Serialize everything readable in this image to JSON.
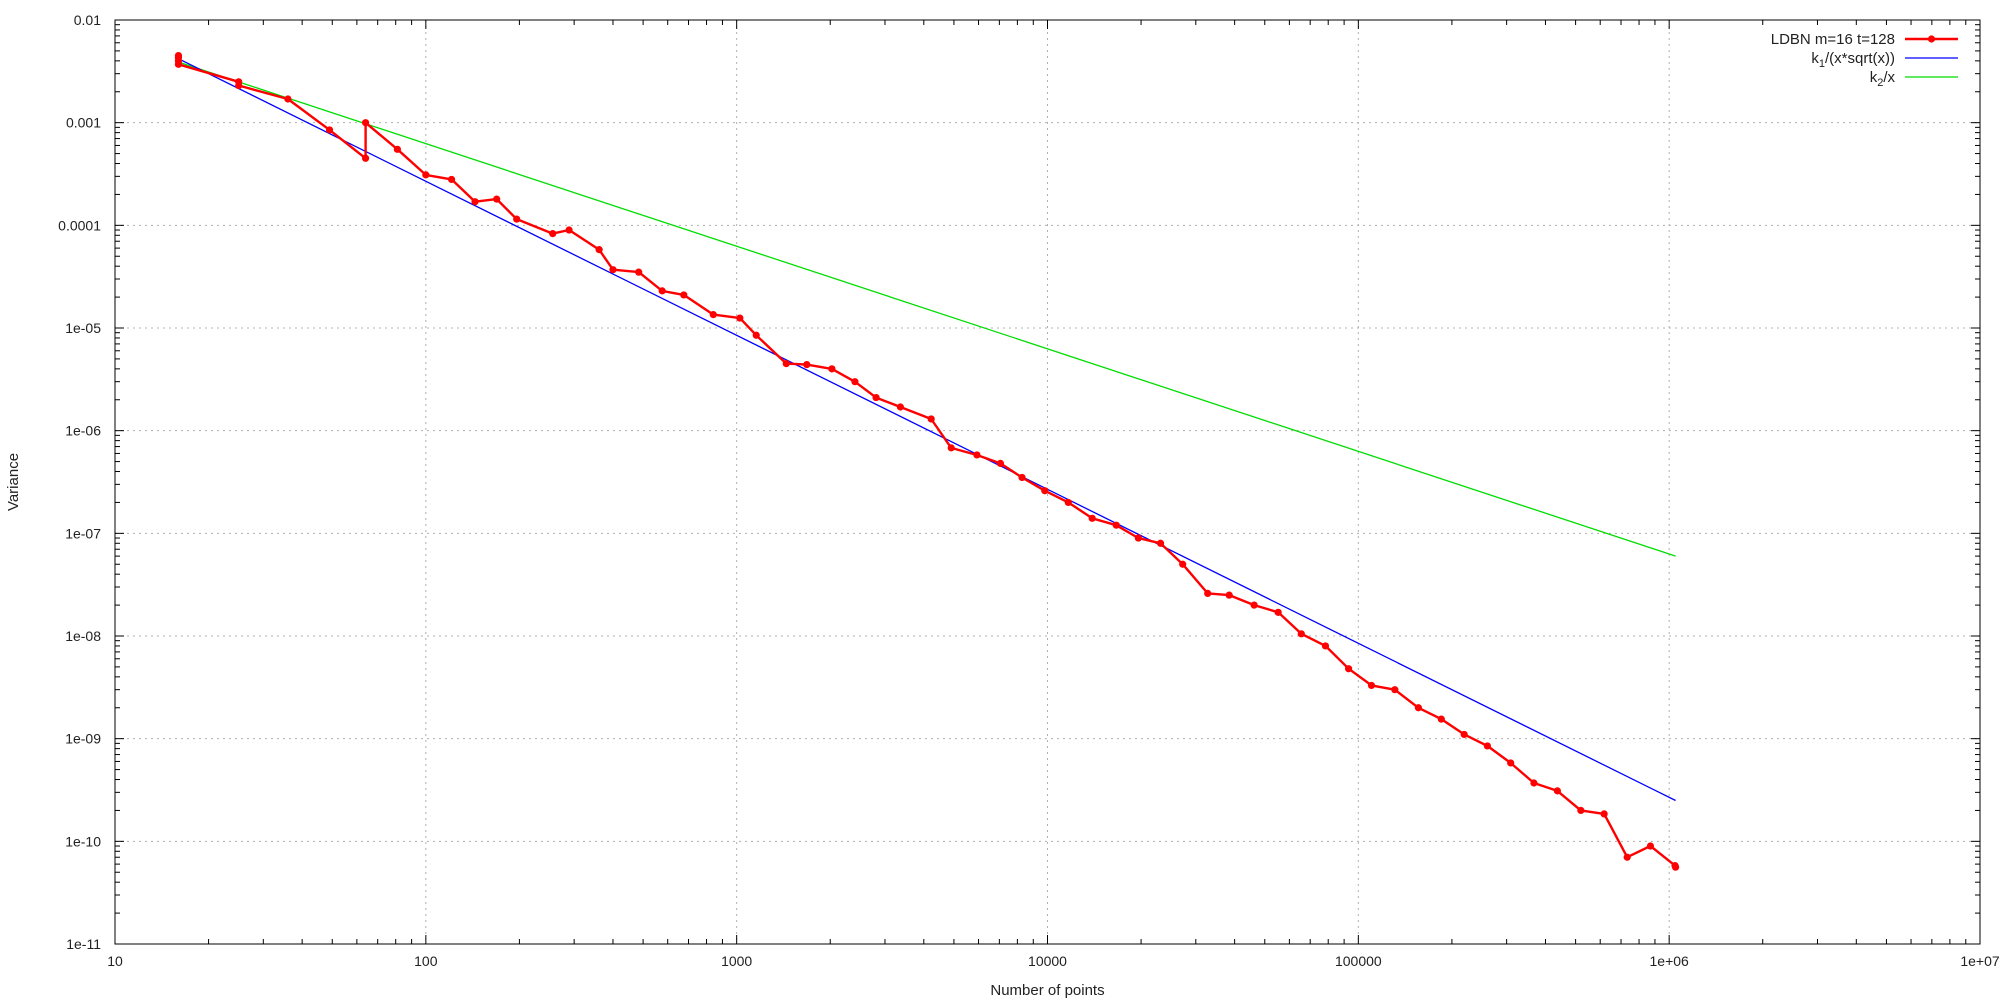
{
  "chart_data": {
    "type": "line",
    "title": "",
    "xlabel": "Number of points",
    "ylabel": "Variance",
    "xscale": "log",
    "yscale": "log",
    "xlim": [
      10,
      10000000
    ],
    "ylim": [
      1e-11,
      0.01
    ],
    "grid": true,
    "legend_position": "top-right",
    "x_ticks": [
      {
        "value": 10,
        "label": "10"
      },
      {
        "value": 100,
        "label": "100"
      },
      {
        "value": 1000,
        "label": "1000"
      },
      {
        "value": 10000,
        "label": "10000"
      },
      {
        "value": 100000,
        "label": "100000"
      },
      {
        "value": 1000000,
        "label": "1e+06"
      },
      {
        "value": 10000000,
        "label": "1e+07"
      }
    ],
    "y_ticks": [
      {
        "value": 0.01,
        "label": "0.01"
      },
      {
        "value": 0.001,
        "label": "0.001"
      },
      {
        "value": 0.0001,
        "label": "0.0001"
      },
      {
        "value": 1e-05,
        "label": "1e-05"
      },
      {
        "value": 1e-06,
        "label": "1e-06"
      },
      {
        "value": 1e-07,
        "label": "1e-07"
      },
      {
        "value": 1e-08,
        "label": "1e-08"
      },
      {
        "value": 1e-09,
        "label": "1e-09"
      },
      {
        "value": 1e-10,
        "label": "1e-10"
      },
      {
        "value": 1e-11,
        "label": "1e-11"
      }
    ],
    "series": [
      {
        "name": "LDBN m=16 t=128",
        "legend": {
          "text": "LDBN m=16 t=128",
          "sub": "",
          "suffix": ""
        },
        "color": "#ff0000",
        "style": "linespoints",
        "x": [
          16,
          16,
          16,
          16,
          25,
          25,
          36,
          49,
          64,
          64,
          81,
          100,
          121,
          144,
          169,
          196,
          256,
          289,
          361,
          400,
          484,
          576,
          676,
          841,
          1024,
          1156,
          1444,
          1681,
          2025,
          2401,
          2809,
          3364,
          4225,
          4900,
          5929,
          7056,
          8281,
          9801,
          11664,
          13924,
          16641,
          19600,
          23104,
          27225,
          32761,
          38416,
          46225,
          55225,
          65536,
          78400,
          93025,
          110224,
          131044,
          156025,
          184900,
          219024,
          260100,
          309136,
          367236,
          436921,
          519841,
          617796,
          732736,
          870489,
          1044484,
          1048576
        ],
        "y": [
          0.0045,
          0.0043,
          0.004,
          0.0037,
          0.0025,
          0.0023,
          0.0017,
          0.00085,
          0.00045,
          0.001,
          0.00055,
          0.00031,
          0.00028,
          0.00017,
          0.00018,
          0.000115,
          8.3e-05,
          9e-05,
          5.8e-05,
          3.7e-05,
          3.5e-05,
          2.3e-05,
          2.1e-05,
          1.35e-05,
          1.25e-05,
          8.5e-06,
          4.5e-06,
          4.4e-06,
          4e-06,
          3e-06,
          2.1e-06,
          1.7e-06,
          1.3e-06,
          6.8e-07,
          5.8e-07,
          4.8e-07,
          3.5e-07,
          2.6e-07,
          2e-07,
          1.4e-07,
          1.2e-07,
          9e-08,
          8e-08,
          5e-08,
          2.6e-08,
          2.5e-08,
          2e-08,
          1.7e-08,
          1.05e-08,
          8e-09,
          4.8e-09,
          3.3e-09,
          3e-09,
          2e-09,
          1.55e-09,
          1.1e-09,
          8.5e-10,
          5.8e-10,
          3.7e-10,
          3.1e-10,
          2e-10,
          1.85e-10,
          7e-11,
          9e-11,
          5.8e-11,
          5.6e-11
        ]
      },
      {
        "name": "k1/(x*sqrt(x))",
        "legend": {
          "text": "k",
          "sub": "1",
          "suffix": "/(x*sqrt(x))"
        },
        "color": "#0000ff",
        "style": "line",
        "x": [
          16,
          1048576
        ],
        "y": [
          0.0042,
          2.5e-10
        ]
      },
      {
        "name": "k2/x",
        "legend": {
          "text": "k",
          "sub": "2",
          "suffix": "/x"
        },
        "color": "#00dd00",
        "style": "line",
        "x": [
          16,
          1048576
        ],
        "y": [
          0.0039,
          6e-08
        ]
      }
    ]
  }
}
